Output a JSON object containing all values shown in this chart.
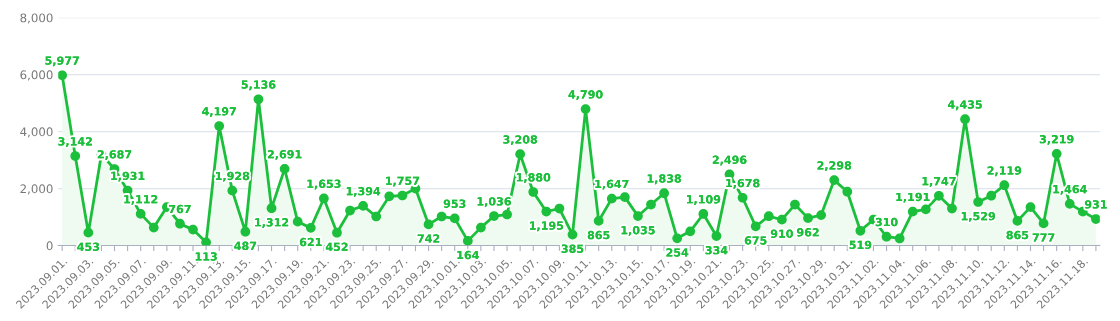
{
  "chart_data": {
    "type": "area",
    "categories": [
      "2023.09.01.",
      null,
      "2023.09.03.",
      null,
      "2023.09.05.",
      null,
      "2023.09.07.",
      null,
      "2023.09.09.",
      null,
      "2023.09.11.",
      null,
      "2023.09.13.",
      null,
      "2023.09.15.",
      null,
      "2023.09.17.",
      null,
      "2023.09.19.",
      null,
      "2023.09.21.",
      null,
      "2023.09.23.",
      null,
      "2023.09.25.",
      null,
      "2023.09.27.",
      null,
      "2023.09.29.",
      null,
      "2023.10.01.",
      null,
      "2023.10.03.",
      null,
      "2023.10.05.",
      null,
      "2023.10.07.",
      null,
      "2023.10.09.",
      null,
      "2023.10.11.",
      null,
      "2023.10.13.",
      null,
      "2023.10.15.",
      null,
      "2023.10.17.",
      null,
      "2023.10.19.",
      null,
      "2023.10.21.",
      null,
      "2023.10.23.",
      null,
      "2023.10.25.",
      null,
      "2023.10.27.",
      null,
      "2023.10.29.",
      null,
      "2023.10.31.",
      null,
      "2023.11.02.",
      null,
      "2023.11.04.",
      null,
      "2023.11.06.",
      null,
      "2023.11.08.",
      null,
      "2023.11.10.",
      null,
      "2023.11.12.",
      null,
      "2023.11.14.",
      null,
      "2023.11.16.",
      null,
      "2023.11.18.",
      null
    ],
    "series": [
      {
        "color": "#1cbf3b",
        "values": [
          5977,
          3142,
          453,
          3200,
          2687,
          1931,
          1112,
          630,
          1350,
          767,
          560,
          113,
          4197,
          1928,
          487,
          5136,
          1312,
          2691,
          840,
          621,
          1653,
          452,
          1230,
          1394,
          1020,
          1730,
          1757,
          2000,
          742,
          1020,
          953,
          164,
          630,
          1036,
          1090,
          3208,
          1880,
          1195,
          1300,
          385,
          4790,
          865,
          1647,
          1700,
          1035,
          1440,
          1838,
          254,
          500,
          1109,
          334,
          2496,
          1678,
          675,
          1030,
          910,
          1440,
          962,
          1070,
          2298,
          1890,
          519,
          910,
          310,
          250,
          1191,
          1270,
          1747,
          1300,
          4435,
          1529,
          1750,
          2119,
          865,
          1350,
          777,
          3219,
          1464,
          1190,
          931
        ],
        "value_labels": [
          "5,977",
          "3,142",
          "453",
          null,
          "2,687",
          "1,931",
          "1,112",
          null,
          null,
          "767",
          null,
          "113",
          "4,197",
          "1,928",
          "487",
          "5,136",
          "1,312",
          "2,691",
          null,
          "621",
          "1,653",
          "452",
          null,
          "1,394",
          null,
          null,
          "1,757",
          null,
          "742",
          null,
          "953",
          "164",
          null,
          "1,036",
          null,
          "3,208",
          "1,880",
          "1,195",
          null,
          "385",
          "4,790",
          "865",
          "1,647",
          null,
          "1,035",
          null,
          "1,838",
          "254",
          null,
          "1,109",
          "334",
          "2,496",
          "1,678",
          "675",
          null,
          "910",
          null,
          "962",
          null,
          "2,298",
          null,
          "519",
          null,
          "310",
          null,
          "1,191",
          null,
          "1,747",
          null,
          "4,435",
          "1,529",
          null,
          "2,119",
          "865",
          null,
          "777",
          "3,219",
          "1,464",
          null,
          "931"
        ]
      }
    ],
    "ylim": [
      0,
      8000
    ],
    "yticks": [
      0,
      {
        "value": 2000,
        "label": "2,000"
      },
      {
        "value": 4000,
        "label": "4,000"
      },
      {
        "value": 6000,
        "label": "6,000"
      },
      {
        "value": 8000,
        "label": "8,000"
      }
    ],
    "grid": "y",
    "marker": "circle",
    "line_style": "solid",
    "legend": false
  }
}
